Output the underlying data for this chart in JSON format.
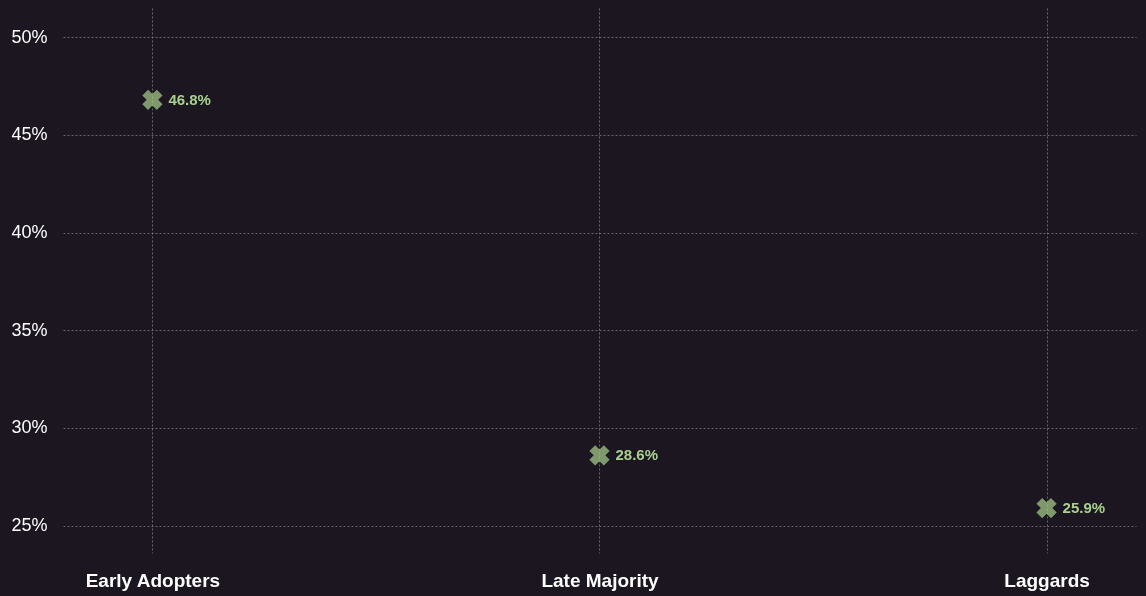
{
  "chart_data": {
    "type": "scatter",
    "categories": [
      "Early Adopters",
      "Late Majority",
      "Laggards"
    ],
    "series": [
      {
        "color": "#a9d18e",
        "values": [
          46.8,
          28.6,
          25.9
        ]
      }
    ],
    "value_labels": [
      "46.8%",
      "28.6%",
      "25.9%"
    ],
    "ylim": [
      23.6,
      51.5
    ],
    "yticks": [
      {
        "value": 25,
        "label": "25%"
      },
      {
        "value": 30,
        "label": "30%"
      },
      {
        "value": 35,
        "label": "35%"
      },
      {
        "value": 40,
        "label": "40%"
      },
      {
        "value": 45,
        "label": "45%"
      },
      {
        "value": 50,
        "label": "50%"
      }
    ],
    "grid": true,
    "marker": "cross"
  }
}
